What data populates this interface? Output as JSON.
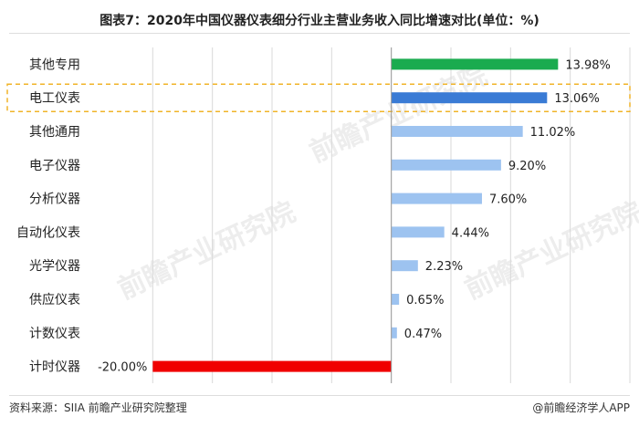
{
  "title": "图表7：2020年中国仪器仪表细分行业主营业务收入同比增速对比(单位：%)",
  "footer": {
    "source": "资料来源：SIIA 前瞻产业研究院整理",
    "brand": "@前瞻经济学人APP"
  },
  "watermark_text": "前瞻产业研究院",
  "colors": {
    "positive_top": "#1aab4f",
    "highlight": "#3a7bd5",
    "positive": "#9dc3f0",
    "negative": "#f00000",
    "highlight_box": "#f0b429"
  },
  "chart_data": {
    "type": "bar",
    "orientation": "horizontal",
    "categories": [
      "其他专用",
      "电工仪表",
      "其他通用",
      "电子仪器",
      "分析仪器",
      "自动化仪表",
      "光学仪器",
      "供应仪表",
      "计数仪表",
      "计时仪器"
    ],
    "values": [
      13.98,
      13.06,
      11.02,
      9.2,
      7.6,
      4.44,
      2.23,
      0.65,
      0.47,
      -20.0
    ],
    "data_labels": [
      "13.98%",
      "13.06%",
      "11.02%",
      "9.20%",
      "7.60%",
      "4.44%",
      "2.23%",
      "0.65%",
      "0.47%",
      "-20.00%"
    ],
    "highlighted_category": "电工仪表",
    "xlim": [
      -25,
      20
    ],
    "grid": true,
    "title": "",
    "xlabel": "",
    "ylabel": ""
  }
}
